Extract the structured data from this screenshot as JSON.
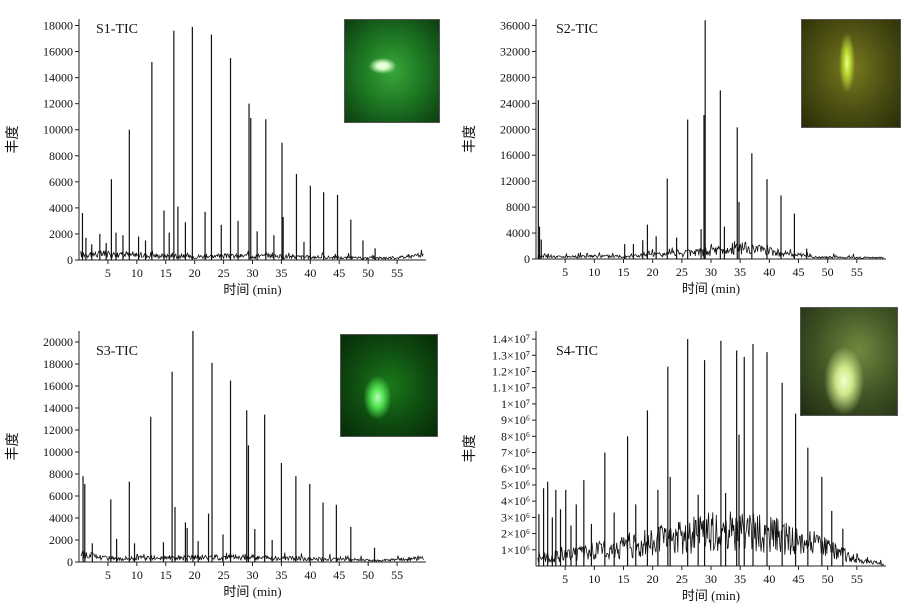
{
  "chart_data": [
    {
      "type": "line",
      "title": "S1-TIC",
      "xlabel": "时间 (min)",
      "ylabel": "丰度",
      "xlim": [
        0,
        60
      ],
      "ylim": [
        0,
        18500
      ],
      "yticks": [
        0,
        2000,
        4000,
        6000,
        8000,
        10000,
        12000,
        14000,
        16000,
        18000
      ],
      "xticks": [
        5,
        10,
        15,
        20,
        25,
        30,
        35,
        40,
        45,
        50,
        55
      ],
      "baseline": [
        [
          0,
          500
        ],
        [
          3,
          500
        ],
        [
          10,
          400
        ],
        [
          20,
          300
        ],
        [
          30,
          350
        ],
        [
          40,
          250
        ],
        [
          50,
          150
        ],
        [
          55,
          200
        ],
        [
          59.5,
          400
        ]
      ],
      "peaks": [
        [
          0.6,
          3600
        ],
        [
          1.2,
          1700
        ],
        [
          2.2,
          1200
        ],
        [
          3.6,
          2000
        ],
        [
          4.7,
          1300
        ],
        [
          5.6,
          6200
        ],
        [
          6.4,
          2100
        ],
        [
          7.6,
          1900
        ],
        [
          8.7,
          10000
        ],
        [
          10.3,
          1800
        ],
        [
          11.5,
          1500
        ],
        [
          12.6,
          15200
        ],
        [
          14.7,
          3800
        ],
        [
          15.6,
          2100
        ],
        [
          16.4,
          17600
        ],
        [
          17.1,
          4100
        ],
        [
          18.4,
          2900
        ],
        [
          19.6,
          17900
        ],
        [
          21.8,
          3700
        ],
        [
          22.9,
          17300
        ],
        [
          24.6,
          2700
        ],
        [
          26.2,
          15500
        ],
        [
          27.5,
          3000
        ],
        [
          29.4,
          12000
        ],
        [
          29.7,
          10900
        ],
        [
          30.8,
          2200
        ],
        [
          32.3,
          10800
        ],
        [
          33.7,
          1900
        ],
        [
          35.1,
          9000
        ],
        [
          35.3,
          3300
        ],
        [
          37.6,
          6600
        ],
        [
          38.9,
          1400
        ],
        [
          40.0,
          5700
        ],
        [
          42.3,
          5200
        ],
        [
          44.7,
          5000
        ],
        [
          47.0,
          3100
        ],
        [
          49.1,
          1500
        ],
        [
          51.2,
          900
        ]
      ]
    },
    {
      "type": "line",
      "title": "S2-TIC",
      "xlabel": "时间 (min)",
      "ylabel": "丰度",
      "xlim": [
        0,
        60
      ],
      "ylim": [
        0,
        37000
      ],
      "yticks": [
        0,
        4000,
        8000,
        12000,
        16000,
        20000,
        24000,
        28000,
        32000,
        36000
      ],
      "xticks": [
        5,
        10,
        15,
        20,
        25,
        30,
        35,
        40,
        45,
        50,
        55
      ],
      "baseline": [
        [
          0,
          400
        ],
        [
          5,
          400
        ],
        [
          15,
          500
        ],
        [
          25,
          900
        ],
        [
          30,
          1300
        ],
        [
          36,
          1800
        ],
        [
          42,
          1000
        ],
        [
          48,
          300
        ],
        [
          59.5,
          200
        ]
      ],
      "peaks": [
        [
          0.4,
          24500
        ],
        [
          0.6,
          5000
        ],
        [
          0.9,
          3000
        ],
        [
          15.2,
          2300
        ],
        [
          16.7,
          2300
        ],
        [
          18.3,
          2900
        ],
        [
          19.1,
          5300
        ],
        [
          20.6,
          3500
        ],
        [
          22.5,
          12400
        ],
        [
          24.1,
          3300
        ],
        [
          26.0,
          21500
        ],
        [
          28.3,
          4600
        ],
        [
          28.8,
          22200
        ],
        [
          29.0,
          36800
        ],
        [
          31.6,
          26000
        ],
        [
          32.3,
          5000
        ],
        [
          34.5,
          20300
        ],
        [
          34.8,
          8800
        ],
        [
          37.0,
          16300
        ],
        [
          39.6,
          12300
        ],
        [
          42.0,
          9800
        ],
        [
          44.3,
          7000
        ],
        [
          46.4,
          1600
        ]
      ]
    },
    {
      "type": "line",
      "title": "S3-TIC",
      "xlabel": "时间 (min)",
      "ylabel": "丰度",
      "xlim": [
        0,
        60
      ],
      "ylim": [
        0,
        21000
      ],
      "yticks": [
        0,
        2000,
        4000,
        6000,
        8000,
        10000,
        12000,
        14000,
        16000,
        18000,
        20000
      ],
      "xticks": [
        5,
        10,
        15,
        20,
        25,
        30,
        35,
        40,
        45,
        50,
        55
      ],
      "baseline": [
        [
          0,
          800
        ],
        [
          5,
          400
        ],
        [
          15,
          400
        ],
        [
          25,
          500
        ],
        [
          35,
          400
        ],
        [
          45,
          250
        ],
        [
          52,
          150
        ],
        [
          59.5,
          350
        ]
      ],
      "peaks": [
        [
          0.7,
          7800
        ],
        [
          1.0,
          7100
        ],
        [
          2.3,
          1700
        ],
        [
          5.5,
          5700
        ],
        [
          6.5,
          2100
        ],
        [
          8.7,
          7300
        ],
        [
          9.6,
          1700
        ],
        [
          12.4,
          13200
        ],
        [
          14.6,
          1800
        ],
        [
          16.1,
          17300
        ],
        [
          16.6,
          5000
        ],
        [
          18.4,
          3600
        ],
        [
          18.7,
          3100
        ],
        [
          19.7,
          21000
        ],
        [
          20.6,
          1900
        ],
        [
          22.4,
          4400
        ],
        [
          23.0,
          18100
        ],
        [
          24.9,
          2500
        ],
        [
          26.2,
          16500
        ],
        [
          29.0,
          13800
        ],
        [
          29.3,
          10600
        ],
        [
          30.4,
          3000
        ],
        [
          32.1,
          13400
        ],
        [
          33.4,
          2000
        ],
        [
          35.0,
          9000
        ],
        [
          37.5,
          7800
        ],
        [
          39.9,
          7100
        ],
        [
          42.2,
          5400
        ],
        [
          44.5,
          5200
        ],
        [
          47.0,
          3200
        ],
        [
          51.1,
          1300
        ]
      ]
    },
    {
      "type": "line",
      "title": "S4-TIC",
      "xlabel": "时间 (min)",
      "ylabel": "丰度",
      "xlim": [
        0,
        60
      ],
      "ylim": [
        0,
        14500000
      ],
      "yticks": [
        1000000,
        2000000,
        3000000,
        4000000,
        5000000,
        6000000,
        7000000,
        8000000,
        9000000,
        10000000,
        11000000,
        12000000,
        13000000,
        14000000
      ],
      "ytick_labels": [
        "1×10⁶",
        "2×10⁶",
        "3×10⁶",
        "4×10⁶",
        "5×10⁶",
        "6×10⁶",
        "7×10⁶",
        "8×10⁶",
        "9×10⁶",
        "1×10⁷",
        "1.1×10⁷",
        "1.2×10⁷",
        "1.3×10⁷",
        "1.4×10⁷"
      ],
      "xticks": [
        5,
        10,
        15,
        20,
        25,
        30,
        35,
        40,
        45,
        50,
        55
      ],
      "baseline": [
        [
          0,
          500000
        ],
        [
          5,
          700000
        ],
        [
          10,
          1000000
        ],
        [
          15,
          1300000
        ],
        [
          20,
          1700000
        ],
        [
          25,
          2000000
        ],
        [
          30,
          2300000
        ],
        [
          35,
          2400000
        ],
        [
          40,
          2200000
        ],
        [
          45,
          1700000
        ],
        [
          50,
          1200000
        ],
        [
          55,
          500000
        ],
        [
          59.5,
          100000
        ]
      ],
      "peaks": [
        [
          0.5,
          3200000
        ],
        [
          1.3,
          4800000
        ],
        [
          2.0,
          5200000
        ],
        [
          2.8,
          3000000
        ],
        [
          3.4,
          4700000
        ],
        [
          4.2,
          3500000
        ],
        [
          5.1,
          4700000
        ],
        [
          6.0,
          2500000
        ],
        [
          6.9,
          3800000
        ],
        [
          8.2,
          5300000
        ],
        [
          9.5,
          2600000
        ],
        [
          11.8,
          7000000
        ],
        [
          13.4,
          3300000
        ],
        [
          15.7,
          8000000
        ],
        [
          17.1,
          3800000
        ],
        [
          19.1,
          9600000
        ],
        [
          20.9,
          4700000
        ],
        [
          22.6,
          12300000
        ],
        [
          23.0,
          5500000
        ],
        [
          26.0,
          14000000
        ],
        [
          27.8,
          4400000
        ],
        [
          28.9,
          12700000
        ],
        [
          31.7,
          13900000
        ],
        [
          32.5,
          4500000
        ],
        [
          34.4,
          13300000
        ],
        [
          34.8,
          8100000
        ],
        [
          35.7,
          12900000
        ],
        [
          37.2,
          13700000
        ],
        [
          39.6,
          13200000
        ],
        [
          42.2,
          11300000
        ],
        [
          44.5,
          9400000
        ],
        [
          46.6,
          7300000
        ],
        [
          49.0,
          5500000
        ],
        [
          50.7,
          3400000
        ],
        [
          52.6,
          2300000
        ]
      ]
    }
  ]
}
